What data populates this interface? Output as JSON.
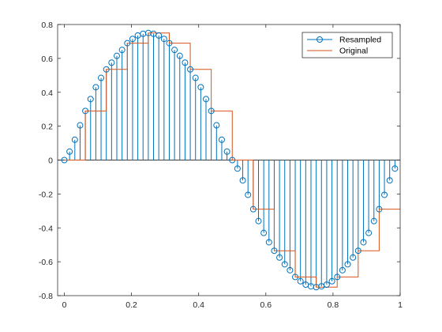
{
  "chart_data": {
    "type": "line",
    "title": "",
    "xlabel": "",
    "ylabel": "",
    "xlim": [
      -0.02,
      1.0
    ],
    "ylim": [
      -0.8,
      0.8
    ],
    "xticks": [
      0,
      0.2,
      0.4,
      0.6,
      0.8,
      1
    ],
    "xtick_labels": [
      "0",
      "0.2",
      "0.4",
      "0.6",
      "0.8",
      "1"
    ],
    "yticks": [
      -0.8,
      -0.6,
      -0.4,
      -0.2,
      0,
      0.2,
      0.4,
      0.6,
      0.8
    ],
    "ytick_labels": [
      "-0.8",
      "-0.6",
      "-0.4",
      "-0.2",
      "0",
      "0.2",
      "0.4",
      "0.6",
      "0.8"
    ],
    "grid": false,
    "legend": {
      "location": "top-right",
      "entries": [
        "Resampled",
        "Original"
      ]
    },
    "series": [
      {
        "name": "Resampled",
        "style": "stem",
        "color": "#0072BD",
        "x": [
          0,
          0.015625,
          0.03125,
          0.046875,
          0.0625,
          0.078125,
          0.09375,
          0.109375,
          0.125,
          0.140625,
          0.15625,
          0.171875,
          0.1875,
          0.203125,
          0.21875,
          0.234375,
          0.25,
          0.265625,
          0.28125,
          0.296875,
          0.3125,
          0.328125,
          0.34375,
          0.359375,
          0.375,
          0.390625,
          0.40625,
          0.421875,
          0.4375,
          0.453125,
          0.46875,
          0.484375,
          0.5,
          0.515625,
          0.53125,
          0.546875,
          0.5625,
          0.578125,
          0.59375,
          0.609375,
          0.625,
          0.640625,
          0.65625,
          0.671875,
          0.6875,
          0.703125,
          0.71875,
          0.734375,
          0.75,
          0.765625,
          0.78125,
          0.796875,
          0.8125,
          0.828125,
          0.84375,
          0.859375,
          0.875,
          0.890625,
          0.90625,
          0.921875,
          0.9375,
          0.953125,
          0.96875,
          0.984375
        ],
        "values": [
          0,
          0.05,
          0.12,
          0.205,
          0.29,
          0.36,
          0.43,
          0.485,
          0.535,
          0.575,
          0.615,
          0.65,
          0.69,
          0.715,
          0.735,
          0.745,
          0.75,
          0.745,
          0.735,
          0.715,
          0.69,
          0.65,
          0.615,
          0.575,
          0.535,
          0.485,
          0.43,
          0.36,
          0.29,
          0.205,
          0.12,
          0.05,
          0,
          -0.05,
          -0.12,
          -0.205,
          -0.29,
          -0.36,
          -0.43,
          -0.485,
          -0.535,
          -0.575,
          -0.615,
          -0.65,
          -0.69,
          -0.715,
          -0.735,
          -0.745,
          -0.75,
          -0.745,
          -0.735,
          -0.715,
          -0.69,
          -0.65,
          -0.615,
          -0.575,
          -0.535,
          -0.485,
          -0.43,
          -0.36,
          -0.29,
          -0.205,
          -0.12,
          -0.05
        ]
      },
      {
        "name": "Original",
        "style": "stairs",
        "color": "#D95319",
        "x": [
          0,
          0.0625,
          0.125,
          0.1875,
          0.25,
          0.3125,
          0.375,
          0.4375,
          0.5,
          0.5625,
          0.625,
          0.6875,
          0.75,
          0.8125,
          0.875,
          0.9375,
          1.0
        ],
        "values": [
          0,
          0.29,
          0.535,
          0.69,
          0.75,
          0.69,
          0.535,
          0.29,
          0,
          -0.29,
          -0.535,
          -0.69,
          -0.75,
          -0.69,
          -0.535,
          -0.29,
          -0.29
        ]
      }
    ]
  }
}
